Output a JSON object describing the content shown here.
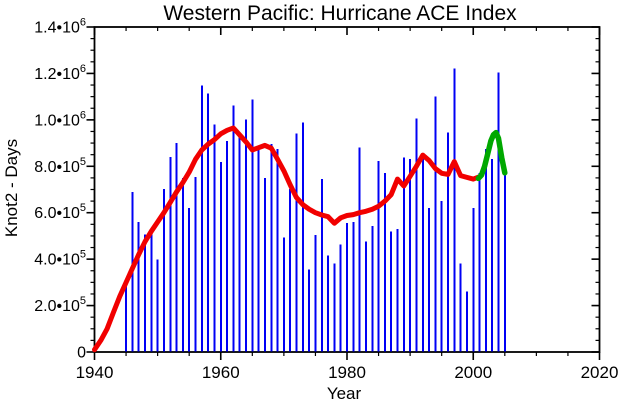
{
  "chart_data": {
    "type": "bar",
    "title": "Western Pacific: Hurricane ACE Index",
    "xlabel": "Year",
    "ylabel": "Knot2 - Days",
    "xlim": [
      1940,
      2020
    ],
    "ylim": [
      0,
      1400000
    ],
    "grid": false,
    "legend": null,
    "x_major_ticks": [
      1940,
      1960,
      1980,
      2000,
      2020
    ],
    "x_minor_tick_step": 5,
    "y_major_tick_step": 200000,
    "y_minor_tick_step": 50000,
    "y_tick_labels": [
      {
        "value": 0,
        "text": "0",
        "sup": null
      },
      {
        "value": 200000,
        "text": "2.0•10",
        "sup": "5"
      },
      {
        "value": 400000,
        "text": "4.0•10",
        "sup": "5"
      },
      {
        "value": 600000,
        "text": "6.0•10",
        "sup": "5"
      },
      {
        "value": 800000,
        "text": "8.0•10",
        "sup": "5"
      },
      {
        "value": 1000000,
        "text": "1.0•10",
        "sup": "6"
      },
      {
        "value": 1200000,
        "text": "1.2•10",
        "sup": "6"
      },
      {
        "value": 1400000,
        "text": "1.4•10",
        "sup": "6"
      }
    ],
    "colors": {
      "bars": "#0000F5",
      "smoothed": "#F10000",
      "recent": "#00A800",
      "axis": "#000000",
      "background": "#FFFFFF"
    },
    "series": [
      {
        "name": "annual-ace",
        "type": "bar",
        "years": [
          1945,
          1946,
          1947,
          1948,
          1949,
          1950,
          1951,
          1952,
          1953,
          1954,
          1955,
          1956,
          1957,
          1958,
          1959,
          1960,
          1961,
          1962,
          1963,
          1964,
          1965,
          1966,
          1967,
          1968,
          1969,
          1970,
          1971,
          1972,
          1973,
          1974,
          1975,
          1976,
          1977,
          1978,
          1979,
          1980,
          1981,
          1982,
          1983,
          1984,
          1985,
          1986,
          1987,
          1988,
          1989,
          1990,
          1991,
          1992,
          1993,
          1994,
          1995,
          1996,
          1997,
          1998,
          1999,
          2000,
          2001,
          2002,
          2003,
          2004,
          2005
        ],
        "values": [
          295000,
          689000,
          559000,
          507000,
          516000,
          399000,
          702000,
          841000,
          901000,
          750000,
          620000,
          754000,
          1148000,
          1114000,
          980000,
          819000,
          910000,
          1062000,
          932000,
          1001000,
          1088000,
          880000,
          750000,
          897000,
          875000,
          494000,
          702000,
          941000,
          988000,
          355000,
          503000,
          745000,
          416000,
          381000,
          464000,
          555000,
          559000,
          880000,
          477000,
          542000,
          823000,
          771000,
          520000,
          529000,
          837000,
          832000,
          1006000,
          832000,
          620000,
          1101000,
          650000,
          945000,
          1222000,
          381000,
          260000,
          620000,
          771000,
          875000,
          832000,
          1205000,
          763000
        ]
      },
      {
        "name": "smoothed-ace",
        "type": "line",
        "points": [
          [
            1940,
            10000
          ],
          [
            1941,
            50000
          ],
          [
            1942,
            100000
          ],
          [
            1943,
            170000
          ],
          [
            1944,
            240000
          ],
          [
            1945,
            300000
          ],
          [
            1946,
            360000
          ],
          [
            1947,
            420000
          ],
          [
            1948,
            475000
          ],
          [
            1949,
            520000
          ],
          [
            1950,
            560000
          ],
          [
            1951,
            600000
          ],
          [
            1952,
            645000
          ],
          [
            1953,
            690000
          ],
          [
            1954,
            730000
          ],
          [
            1955,
            775000
          ],
          [
            1956,
            830000
          ],
          [
            1957,
            870000
          ],
          [
            1958,
            895000
          ],
          [
            1959,
            915000
          ],
          [
            1960,
            940000
          ],
          [
            1961,
            955000
          ],
          [
            1962,
            965000
          ],
          [
            1963,
            935000
          ],
          [
            1964,
            905000
          ],
          [
            1965,
            870000
          ],
          [
            1966,
            880000
          ],
          [
            1967,
            890000
          ],
          [
            1968,
            878000
          ],
          [
            1969,
            830000
          ],
          [
            1970,
            780000
          ],
          [
            1971,
            720000
          ],
          [
            1972,
            665000
          ],
          [
            1973,
            635000
          ],
          [
            1974,
            615000
          ],
          [
            1975,
            600000
          ],
          [
            1976,
            590000
          ],
          [
            1977,
            583000
          ],
          [
            1978,
            555000
          ],
          [
            1979,
            578000
          ],
          [
            1980,
            588000
          ],
          [
            1981,
            592000
          ],
          [
            1982,
            600000
          ],
          [
            1983,
            606000
          ],
          [
            1984,
            615000
          ],
          [
            1985,
            628000
          ],
          [
            1986,
            650000
          ],
          [
            1987,
            678000
          ],
          [
            1988,
            745000
          ],
          [
            1989,
            715000
          ],
          [
            1990,
            757000
          ],
          [
            1991,
            800000
          ],
          [
            1992,
            848000
          ],
          [
            1993,
            825000
          ],
          [
            1994,
            790000
          ],
          [
            1995,
            770000
          ],
          [
            1996,
            765000
          ],
          [
            1997,
            820000
          ],
          [
            1998,
            760000
          ],
          [
            1999,
            752000
          ],
          [
            2000,
            745000
          ],
          [
            2001,
            755000
          ]
        ]
      },
      {
        "name": "smoothed-ace-recent",
        "type": "line",
        "points": [
          [
            2000.8,
            748000
          ],
          [
            2001.3,
            762000
          ],
          [
            2001.8,
            800000
          ],
          [
            2002.3,
            855000
          ],
          [
            2002.8,
            910000
          ],
          [
            2003.2,
            936000
          ],
          [
            2003.6,
            945000
          ],
          [
            2004.0,
            920000
          ],
          [
            2004.5,
            838000
          ],
          [
            2005.0,
            772000
          ]
        ]
      }
    ]
  }
}
